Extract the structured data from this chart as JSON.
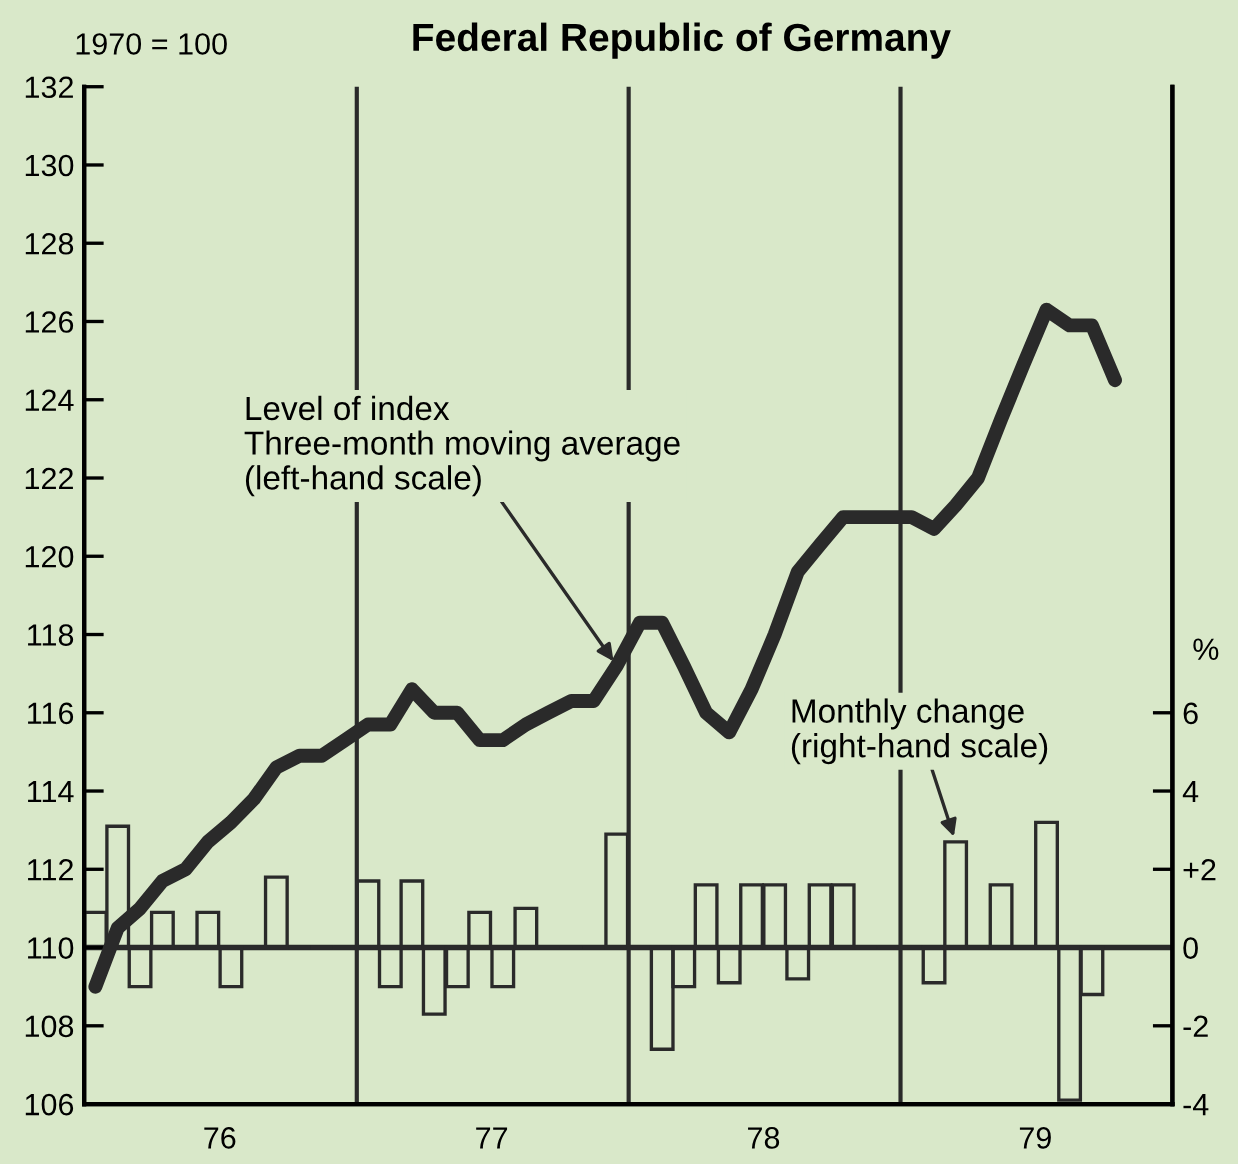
{
  "chart_data": {
    "type": "line",
    "title": "Federal Republic of Germany",
    "ylabel": "1970 = 100",
    "y2label": "%",
    "xlim": [
      "1976-01-01",
      "1980-01-01"
    ],
    "xticks": [
      {
        "value": "1976-07-01",
        "label": "76"
      },
      {
        "value": "1977-07-01",
        "label": "77"
      },
      {
        "value": "1978-07-01",
        "label": "78"
      },
      {
        "value": "1979-07-01",
        "label": "79"
      }
    ],
    "ylim": [
      106,
      132
    ],
    "yticks": [
      106,
      108,
      110,
      112,
      114,
      116,
      118,
      120,
      122,
      124,
      126,
      128,
      130,
      132
    ],
    "y2lim": [
      -4,
      22
    ],
    "y2ticks": [
      -4,
      -2,
      0,
      {
        "value": 2,
        "label": "+2"
      },
      4,
      6
    ],
    "grid": false,
    "legend": false,
    "series": [
      {
        "type": "bar",
        "axis": "y2",
        "color": "#2a2a2a",
        "x": [
          "1976-01-16",
          "1976-02-15",
          "1976-03-16",
          "1976-04-15",
          "1976-05-16",
          "1976-06-15",
          "1976-07-16",
          "1976-08-16",
          "1976-09-15",
          "1976-10-16",
          "1976-11-15",
          "1976-12-16",
          "1977-01-16",
          "1977-02-15",
          "1977-03-16",
          "1977-04-15",
          "1977-05-16",
          "1977-06-15",
          "1977-07-16",
          "1977-08-16",
          "1977-09-15",
          "1977-10-16",
          "1977-11-15",
          "1977-12-16",
          "1978-01-16",
          "1978-02-15",
          "1978-03-16",
          "1978-04-15",
          "1978-05-16",
          "1978-06-15",
          "1978-07-16",
          "1978-08-16",
          "1978-09-15",
          "1978-10-16",
          "1978-11-15",
          "1978-12-16",
          "1979-01-16",
          "1979-02-15",
          "1979-03-16",
          "1979-04-15",
          "1979-05-16",
          "1979-06-15",
          "1979-07-16",
          "1979-08-16",
          "1979-09-15"
        ],
        "values": [
          0.9,
          3.1,
          -1.0,
          0.9,
          0,
          0.9,
          -1.0,
          0,
          1.8,
          0,
          0,
          0,
          1.7,
          -1.0,
          1.7,
          -1.7,
          -1.0,
          0.9,
          -1.0,
          1.0,
          0,
          0,
          0,
          2.9,
          0,
          -2.6,
          -1.0,
          1.6,
          -0.9,
          1.6,
          1.6,
          -0.8,
          1.6,
          1.6,
          0,
          0,
          0,
          -0.9,
          2.7,
          0,
          1.6,
          0,
          3.2,
          -3.9,
          -1.2
        ]
      },
      {
        "axis": "y",
        "color": "#2a2a2a",
        "x": [
          "1976-01-16",
          "1976-02-15",
          "1976-03-16",
          "1976-04-15",
          "1976-05-16",
          "1976-06-15",
          "1976-07-16",
          "1976-08-16",
          "1976-09-15",
          "1976-10-16",
          "1976-11-15",
          "1976-12-16",
          "1977-01-16",
          "1977-02-15",
          "1977-03-16",
          "1977-04-15",
          "1977-05-16",
          "1977-06-15",
          "1977-07-16",
          "1977-08-16",
          "1977-09-15",
          "1977-10-16",
          "1977-11-15",
          "1977-12-16",
          "1978-01-16",
          "1978-02-15",
          "1978-03-16",
          "1978-04-15",
          "1978-05-16",
          "1978-06-15",
          "1978-07-16",
          "1978-08-16",
          "1978-09-15",
          "1978-10-16",
          "1978-11-15",
          "1978-12-16",
          "1979-01-16",
          "1979-02-15",
          "1979-03-16",
          "1979-04-15",
          "1979-05-16",
          "1979-06-15",
          "1979-07-16",
          "1979-08-16",
          "1979-09-15",
          "1979-10-16"
        ],
        "values": [
          109.0,
          110.5,
          111.0,
          111.7,
          112.0,
          112.7,
          113.2,
          113.8,
          114.6,
          114.9,
          114.9,
          115.3,
          115.7,
          115.7,
          116.6,
          116.0,
          116.0,
          115.3,
          115.3,
          115.7,
          116.0,
          116.3,
          116.3,
          117.2,
          118.3,
          118.3,
          117.2,
          116.0,
          115.5,
          116.6,
          118.0,
          119.6,
          120.3,
          121.0,
          121.0,
          121.0,
          121.0,
          120.7,
          121.3,
          122.0,
          123.5,
          124.9,
          126.3,
          125.9,
          125.9,
          124.5
        ]
      }
    ],
    "ref_lines": [
      {
        "axis": "x",
        "value": "1977-01-01",
        "color": "#2a2a2a"
      },
      {
        "axis": "x",
        "value": "1978-01-01",
        "color": "#2a2a2a"
      },
      {
        "axis": "x",
        "value": "1979-01-01",
        "color": "#2a2a2a"
      },
      {
        "axis": "y2",
        "value": 0,
        "color": "#2a2a2a"
      }
    ],
    "annotations": [
      {
        "text": "Level of index\nThree-month moving average\n(left-hand scale)",
        "x": "1977-12-16",
        "y": 117.2
      },
      {
        "text": "Monthly change\n(right-hand scale)",
        "x": "1979-03-16",
        "y": 112.7
      }
    ]
  }
}
